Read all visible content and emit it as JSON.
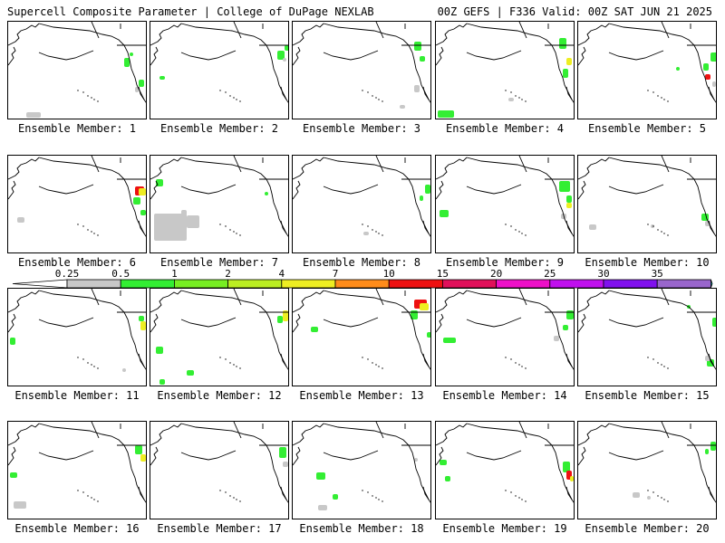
{
  "header": {
    "title_left": "Supercell Composite Parameter | College of DuPage NEXLAB",
    "title_right": "00Z GEFS | F336 Valid: 00Z SAT JUN 21 2025"
  },
  "members": [
    {
      "label": "Ensemble Member: 1"
    },
    {
      "label": "Ensemble Member: 2"
    },
    {
      "label": "Ensemble Member: 3"
    },
    {
      "label": "Ensemble Member: 4"
    },
    {
      "label": "Ensemble Member: 5"
    },
    {
      "label": "Ensemble Member: 6"
    },
    {
      "label": "Ensemble Member: 7"
    },
    {
      "label": "Ensemble Member: 8"
    },
    {
      "label": "Ensemble Member: 9"
    },
    {
      "label": "Ensemble Member: 10"
    },
    {
      "label": "Ensemble Member: 11"
    },
    {
      "label": "Ensemble Member: 12"
    },
    {
      "label": "Ensemble Member: 13"
    },
    {
      "label": "Ensemble Member: 14"
    },
    {
      "label": "Ensemble Member: 15"
    },
    {
      "label": "Ensemble Member: 16"
    },
    {
      "label": "Ensemble Member: 17"
    },
    {
      "label": "Ensemble Member: 18"
    },
    {
      "label": "Ensemble Member: 19"
    },
    {
      "label": "Ensemble Member: 20"
    }
  ],
  "colorbar": {
    "ticks": [
      "0.25",
      "0.5",
      "1",
      "2",
      "4",
      "7",
      "10",
      "15",
      "20",
      "25",
      "30",
      "35"
    ],
    "colors": [
      "#c8c8c8",
      "#33ee33",
      "#77ee22",
      "#bbee22",
      "#eeee22",
      "#ff8c1a",
      "#ee1111",
      "#e0105a",
      "#ee10c8",
      "#c010ee",
      "#8010ee",
      "#9966cc",
      "#33dddd"
    ]
  },
  "colors": {
    "coastline": "#000000",
    "background": "#ffffff",
    "low_values": "#c8c8c8",
    "green": "#33ee33",
    "yellow": "#eeee22",
    "red": "#ee1111"
  }
}
